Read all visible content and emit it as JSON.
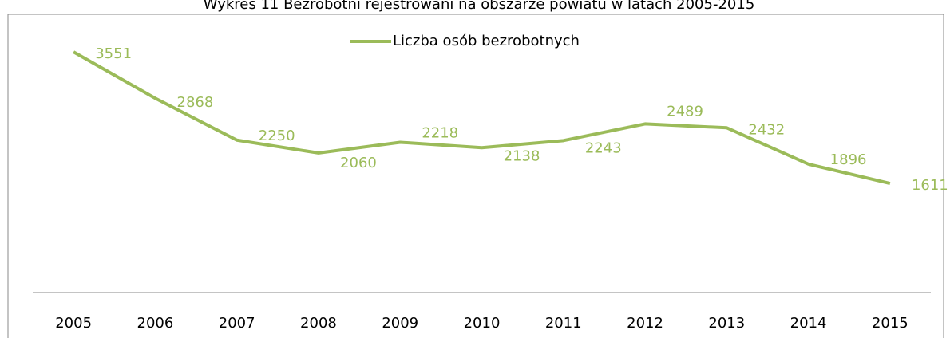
{
  "chart_data": {
    "type": "line",
    "title": "Wykres 11 Bezrobotni rejestrowani na obszarze powiatu w latach 2005-2015",
    "categories": [
      "2005",
      "2006",
      "2007",
      "2008",
      "2009",
      "2010",
      "2011",
      "2012",
      "2013",
      "2014",
      "2015"
    ],
    "series": [
      {
        "name": "Liczba osób bezrobotnych",
        "color": "#9bbb59",
        "values": [
          3551,
          2868,
          2250,
          2060,
          2218,
          2138,
          2243,
          2489,
          2432,
          1896,
          1611
        ]
      }
    ],
    "ylim": [
      0,
      4000
    ],
    "legend": "top"
  }
}
